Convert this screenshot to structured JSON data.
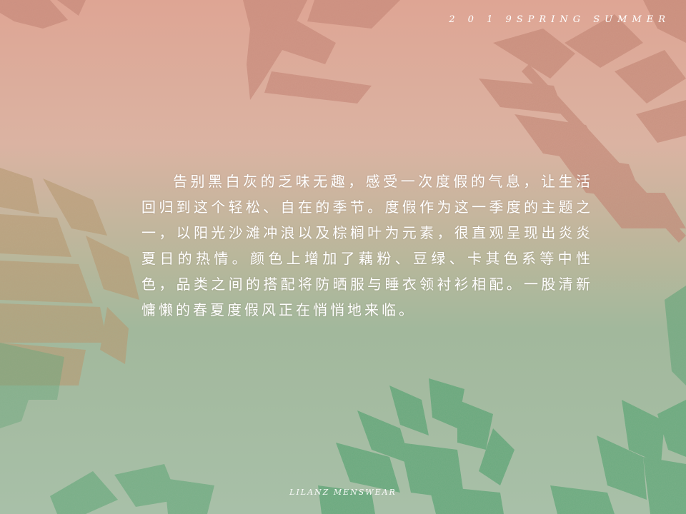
{
  "header": {
    "season_tag": "2 0 1 9SPRING SUMMER"
  },
  "main": {
    "paragraph": "告别黑白灰的乏味无趣，感受一次度假的气息，让生活回归到这个轻松、自在的季节。度假作为这一季度的主题之一，以阳光沙滩冲浪以及棕榈叶为元素，很直观呈现出炎炎夏日的热情。颜色上增加了藕粉、豆绿、卡其色系等中性色，品类之间的搭配将防晒服与睡衣领衬衫相配。一股清新慵懒的春夏度假风正在悄悄地来临。"
  },
  "footer": {
    "brand": "LILANZ MENSWEAR"
  },
  "colors": {
    "background_top": "#dea594",
    "background_mid": "#b9b79b",
    "background_bottom": "#a8c0a8",
    "leaf_pink": "#c98a7b",
    "leaf_green": "#62a77a",
    "text": "#ffffff"
  }
}
